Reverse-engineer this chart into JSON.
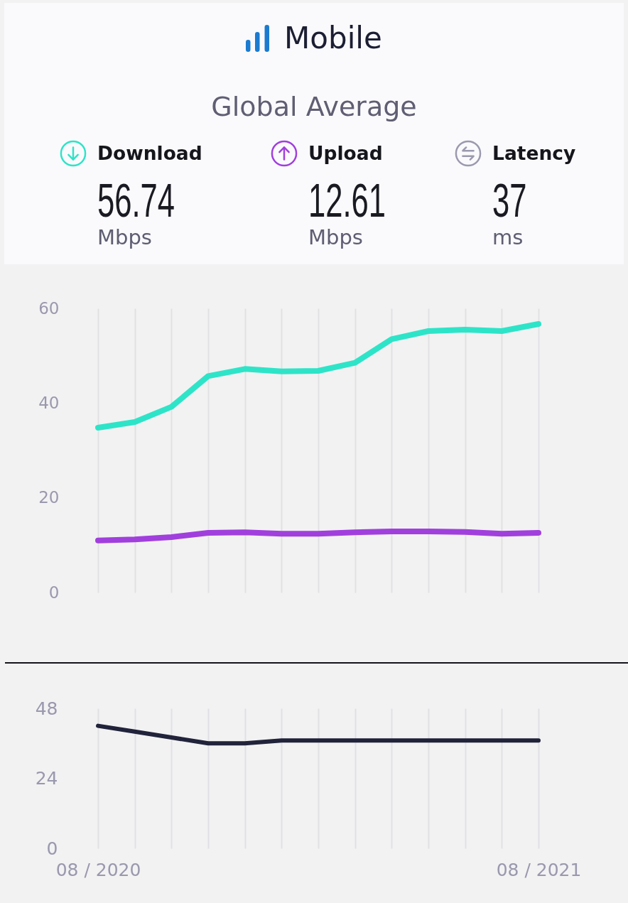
{
  "chart_data": [
    {
      "type": "other",
      "title": "Mobile",
      "subtitle": "Global Average",
      "annotations": [
        "Download",
        "56.74",
        "Mbps",
        "Upload",
        "12.61",
        "Mbps",
        "Latency",
        "37",
        "ms"
      ]
    },
    {
      "type": "line",
      "categories": [
        null,
        null,
        null,
        null,
        null,
        null,
        null,
        null,
        null,
        null,
        null,
        null,
        null
      ],
      "series": [
        {
          "color": "#2ee4c8",
          "values": [
            34.8,
            36.0,
            39.2,
            45.7,
            47.2,
            46.7,
            46.8,
            48.5,
            53.5,
            55.2,
            55.5,
            55.2,
            56.7
          ]
        },
        {
          "color": "#a13fdd",
          "values": [
            11.0,
            11.2,
            11.7,
            12.6,
            12.7,
            12.4,
            12.4,
            12.7,
            12.9,
            12.9,
            12.8,
            12.4,
            12.6
          ]
        }
      ],
      "ylim": [
        0,
        60
      ],
      "yticks": [
        0,
        20,
        40,
        60
      ],
      "grid": "x",
      "tick_labels": "y"
    },
    {
      "type": "line",
      "categories": [
        "08 / 2020",
        null,
        null,
        null,
        null,
        null,
        null,
        null,
        null,
        null,
        null,
        null,
        "08 / 2021"
      ],
      "series": [
        {
          "color": "#20233a",
          "values": [
            42,
            40,
            38,
            36,
            36,
            37,
            37,
            37,
            37,
            37,
            37,
            37,
            37
          ]
        }
      ],
      "ylim": [
        0,
        48
      ],
      "yticks": [
        0,
        24,
        48
      ],
      "grid": "x"
    }
  ]
}
